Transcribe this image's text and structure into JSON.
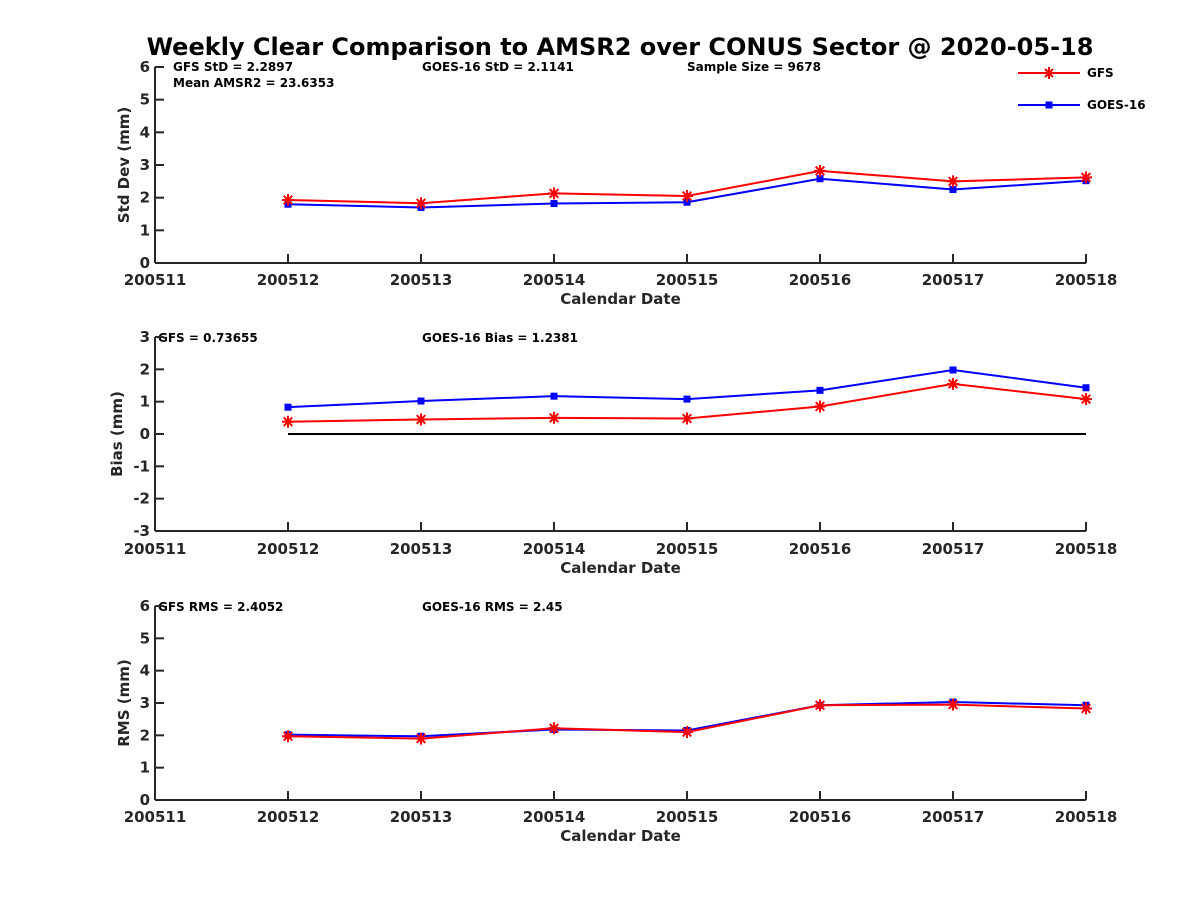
{
  "figure": {
    "title": "Weekly Clear Comparison to AMSR2 over CONUS Sector @ 2020-05-18"
  },
  "legend": {
    "gfs_label": "GFS",
    "goes_label": "GOES-16"
  },
  "colors": {
    "gfs": "#ff0000",
    "goes": "#0000ff",
    "zero_line": "#000000"
  },
  "chart_data": [
    {
      "type": "line",
      "title": "Weekly Clear Comparison to AMSR2 over CONUS Sector @ 2020-05-18",
      "xlabel": "Calendar Date",
      "ylabel": "Std Dev (mm)",
      "x_ticks": [
        "200511",
        "200512",
        "200513",
        "200514",
        "200515",
        "200516",
        "200517",
        "200518"
      ],
      "y_ticks": [
        "0",
        "1",
        "2",
        "3",
        "4",
        "5",
        "6"
      ],
      "ylim": [
        0,
        6
      ],
      "legend_position": "top-right",
      "annotations": {
        "gfs": "GFS StD = 2.2897",
        "goes": "GOES-16 StD = 2.1141",
        "sample": "Sample Size = 9678",
        "mean": "Mean AMSR2 = 23.6353"
      },
      "x": [
        "200512",
        "200513",
        "200514",
        "200515",
        "200516",
        "200517",
        "200518"
      ],
      "series": [
        {
          "name": "GFS",
          "marker": "asterisk",
          "values": [
            1.93,
            1.83,
            2.13,
            2.05,
            2.82,
            2.5,
            2.62
          ]
        },
        {
          "name": "GOES-16",
          "marker": "square",
          "values": [
            1.8,
            1.7,
            1.82,
            1.86,
            2.58,
            2.25,
            2.52
          ]
        }
      ]
    },
    {
      "type": "line",
      "xlabel": "Calendar Date",
      "ylabel": "Bias (mm)",
      "x_ticks": [
        "200511",
        "200512",
        "200513",
        "200514",
        "200515",
        "200516",
        "200517",
        "200518"
      ],
      "y_ticks": [
        "-3",
        "-2",
        "-1",
        "0",
        "1",
        "2",
        "3"
      ],
      "ylim": [
        -3,
        3
      ],
      "zero_line": true,
      "annotations": {
        "gfs": "GFS = 0.73655",
        "goes": "GOES-16 Bias  = 1.2381"
      },
      "x": [
        "200512",
        "200513",
        "200514",
        "200515",
        "200516",
        "200517",
        "200518"
      ],
      "series": [
        {
          "name": "GFS",
          "marker": "asterisk",
          "values": [
            0.38,
            0.45,
            0.5,
            0.48,
            0.85,
            1.55,
            1.08
          ]
        },
        {
          "name": "GOES-16",
          "marker": "square",
          "values": [
            0.83,
            1.02,
            1.17,
            1.08,
            1.35,
            1.98,
            1.43
          ]
        }
      ]
    },
    {
      "type": "line",
      "xlabel": "Calendar Date",
      "ylabel": "RMS (mm)",
      "x_ticks": [
        "200511",
        "200512",
        "200513",
        "200514",
        "200515",
        "200516",
        "200517",
        "200518"
      ],
      "y_ticks": [
        "0",
        "1",
        "2",
        "3",
        "4",
        "5",
        "6"
      ],
      "ylim": [
        0,
        6
      ],
      "annotations": {
        "gfs": "GFS RMS = 2.4052",
        "goes": "GOES-16 RMS = 2.45"
      },
      "x": [
        "200512",
        "200513",
        "200514",
        "200515",
        "200516",
        "200517",
        "200518"
      ],
      "series": [
        {
          "name": "GFS",
          "marker": "asterisk",
          "values": [
            1.97,
            1.9,
            2.22,
            2.1,
            2.93,
            2.95,
            2.83
          ]
        },
        {
          "name": "GOES-16",
          "marker": "square",
          "values": [
            2.02,
            1.97,
            2.18,
            2.15,
            2.93,
            3.03,
            2.93
          ]
        }
      ]
    }
  ]
}
